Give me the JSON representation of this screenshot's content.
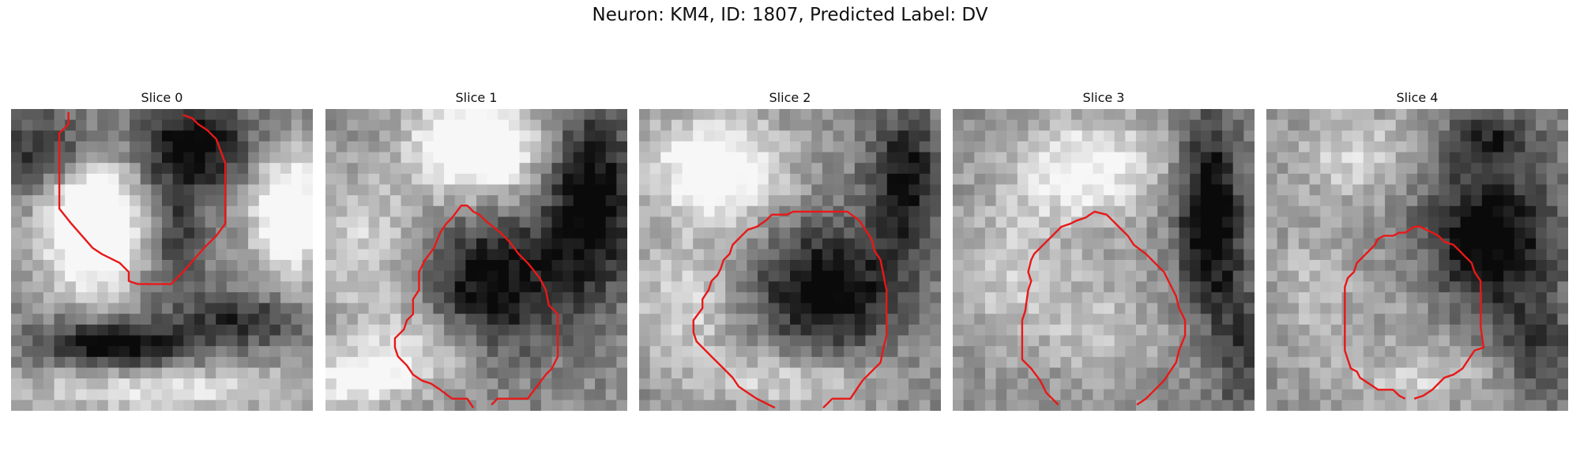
{
  "figure": {
    "title": "Neuron: KM4, ID: 1807, Predicted Label: DV"
  },
  "panels": [
    {
      "label": "Slice 0",
      "seed": 11,
      "blobs": [
        [
          0.27,
          0.37,
          0.16,
          0.22,
          0.85
        ],
        [
          0.92,
          0.35,
          0.12,
          0.2,
          0.7
        ],
        [
          0.6,
          0.12,
          0.2,
          0.14,
          -0.55
        ],
        [
          0.12,
          0.15,
          0.16,
          0.14,
          -0.45
        ],
        [
          0.35,
          0.78,
          0.25,
          0.08,
          -0.6
        ],
        [
          0.78,
          0.7,
          0.2,
          0.08,
          -0.4
        ],
        [
          0.55,
          0.42,
          0.1,
          0.2,
          -0.35
        ],
        [
          0.5,
          0.93,
          0.5,
          0.08,
          0.35
        ]
      ],
      "contour": [
        [
          0.19,
          0.01
        ],
        [
          0.19,
          0.05
        ],
        [
          0.16,
          0.08
        ],
        [
          0.16,
          0.33
        ],
        [
          0.2,
          0.38
        ],
        [
          0.27,
          0.46
        ],
        [
          0.3,
          0.48
        ],
        [
          0.36,
          0.51
        ],
        [
          0.39,
          0.54
        ],
        [
          0.39,
          0.57
        ],
        [
          0.42,
          0.58
        ],
        [
          0.53,
          0.58
        ],
        [
          0.57,
          0.54
        ],
        [
          0.64,
          0.46
        ],
        [
          0.68,
          0.42
        ],
        [
          0.71,
          0.38
        ],
        [
          0.71,
          0.18
        ],
        [
          0.68,
          0.1
        ],
        [
          0.65,
          0.07
        ],
        [
          0.62,
          0.05
        ],
        [
          0.6,
          0.03
        ],
        [
          0.57,
          0.02
        ]
      ]
    },
    {
      "label": "Slice 1",
      "seed": 23,
      "blobs": [
        [
          0.5,
          0.12,
          0.2,
          0.16,
          0.75
        ],
        [
          0.15,
          0.45,
          0.2,
          0.25,
          0.3
        ],
        [
          0.55,
          0.58,
          0.25,
          0.22,
          -0.55
        ],
        [
          0.88,
          0.3,
          0.14,
          0.3,
          -0.6
        ],
        [
          0.3,
          0.8,
          0.2,
          0.15,
          0.35
        ],
        [
          0.1,
          0.9,
          0.15,
          0.1,
          0.4
        ]
      ],
      "contour": [
        [
          0.49,
          0.99
        ],
        [
          0.47,
          0.96
        ],
        [
          0.42,
          0.96
        ],
        [
          0.38,
          0.93
        ],
        [
          0.35,
          0.91
        ],
        [
          0.32,
          0.9
        ],
        [
          0.29,
          0.88
        ],
        [
          0.27,
          0.85
        ],
        [
          0.24,
          0.82
        ],
        [
          0.23,
          0.79
        ],
        [
          0.23,
          0.76
        ],
        [
          0.26,
          0.73
        ],
        [
          0.27,
          0.7
        ],
        [
          0.29,
          0.68
        ],
        [
          0.29,
          0.63
        ],
        [
          0.31,
          0.6
        ],
        [
          0.31,
          0.54
        ],
        [
          0.33,
          0.5
        ],
        [
          0.36,
          0.46
        ],
        [
          0.38,
          0.41
        ],
        [
          0.4,
          0.38
        ],
        [
          0.42,
          0.36
        ],
        [
          0.45,
          0.32
        ],
        [
          0.47,
          0.32
        ],
        [
          0.49,
          0.34
        ],
        [
          0.51,
          0.35
        ],
        [
          0.53,
          0.37
        ],
        [
          0.58,
          0.41
        ],
        [
          0.61,
          0.44
        ],
        [
          0.64,
          0.48
        ],
        [
          0.67,
          0.51
        ],
        [
          0.71,
          0.56
        ],
        [
          0.73,
          0.6
        ],
        [
          0.74,
          0.65
        ],
        [
          0.77,
          0.68
        ],
        [
          0.77,
          0.82
        ],
        [
          0.75,
          0.86
        ],
        [
          0.73,
          0.88
        ],
        [
          0.7,
          0.92
        ],
        [
          0.67,
          0.96
        ],
        [
          0.57,
          0.96
        ],
        [
          0.55,
          0.98
        ]
      ]
    },
    {
      "label": "Slice 2",
      "seed": 37,
      "blobs": [
        [
          0.25,
          0.2,
          0.22,
          0.18,
          0.6
        ],
        [
          0.62,
          0.6,
          0.22,
          0.2,
          -0.6
        ],
        [
          0.88,
          0.25,
          0.12,
          0.25,
          -0.5
        ],
        [
          0.15,
          0.65,
          0.18,
          0.2,
          0.3
        ],
        [
          0.5,
          0.9,
          0.3,
          0.1,
          0.3
        ]
      ],
      "contour": [
        [
          0.45,
          0.99
        ],
        [
          0.43,
          0.98
        ],
        [
          0.39,
          0.96
        ],
        [
          0.36,
          0.94
        ],
        [
          0.33,
          0.92
        ],
        [
          0.31,
          0.89
        ],
        [
          0.28,
          0.86
        ],
        [
          0.25,
          0.83
        ],
        [
          0.22,
          0.8
        ],
        [
          0.19,
          0.77
        ],
        [
          0.18,
          0.74
        ],
        [
          0.18,
          0.7
        ],
        [
          0.21,
          0.66
        ],
        [
          0.21,
          0.63
        ],
        [
          0.23,
          0.6
        ],
        [
          0.24,
          0.57
        ],
        [
          0.26,
          0.55
        ],
        [
          0.27,
          0.53
        ],
        [
          0.28,
          0.5
        ],
        [
          0.3,
          0.48
        ],
        [
          0.31,
          0.45
        ],
        [
          0.34,
          0.42
        ],
        [
          0.36,
          0.4
        ],
        [
          0.39,
          0.39
        ],
        [
          0.42,
          0.37
        ],
        [
          0.44,
          0.35
        ],
        [
          0.49,
          0.35
        ],
        [
          0.51,
          0.34
        ],
        [
          0.69,
          0.34
        ],
        [
          0.73,
          0.37
        ],
        [
          0.75,
          0.4
        ],
        [
          0.77,
          0.43
        ],
        [
          0.78,
          0.47
        ],
        [
          0.8,
          0.5
        ],
        [
          0.81,
          0.55
        ],
        [
          0.82,
          0.6
        ],
        [
          0.82,
          0.75
        ],
        [
          0.81,
          0.79
        ],
        [
          0.8,
          0.84
        ],
        [
          0.77,
          0.87
        ],
        [
          0.74,
          0.9
        ],
        [
          0.72,
          0.93
        ],
        [
          0.7,
          0.96
        ],
        [
          0.64,
          0.96
        ],
        [
          0.61,
          0.99
        ]
      ]
    },
    {
      "label": "Slice 3",
      "seed": 53,
      "blobs": [
        [
          0.45,
          0.2,
          0.25,
          0.18,
          0.45
        ],
        [
          0.85,
          0.35,
          0.1,
          0.3,
          -0.7
        ],
        [
          0.5,
          0.72,
          0.2,
          0.2,
          0.2
        ],
        [
          0.2,
          0.55,
          0.18,
          0.25,
          0.25
        ],
        [
          0.95,
          0.8,
          0.08,
          0.25,
          -0.3
        ]
      ],
      "contour": [
        [
          0.35,
          0.98
        ],
        [
          0.31,
          0.94
        ],
        [
          0.29,
          0.9
        ],
        [
          0.26,
          0.86
        ],
        [
          0.23,
          0.83
        ],
        [
          0.23,
          0.7
        ],
        [
          0.24,
          0.67
        ],
        [
          0.25,
          0.6
        ],
        [
          0.26,
          0.57
        ],
        [
          0.25,
          0.54
        ],
        [
          0.26,
          0.5
        ],
        [
          0.27,
          0.48
        ],
        [
          0.29,
          0.46
        ],
        [
          0.32,
          0.43
        ],
        [
          0.34,
          0.41
        ],
        [
          0.36,
          0.39
        ],
        [
          0.39,
          0.38
        ],
        [
          0.41,
          0.37
        ],
        [
          0.44,
          0.36
        ],
        [
          0.47,
          0.34
        ],
        [
          0.51,
          0.35
        ],
        [
          0.53,
          0.37
        ],
        [
          0.55,
          0.39
        ],
        [
          0.58,
          0.42
        ],
        [
          0.6,
          0.45
        ],
        [
          0.64,
          0.48
        ],
        [
          0.67,
          0.51
        ],
        [
          0.7,
          0.54
        ],
        [
          0.72,
          0.58
        ],
        [
          0.74,
          0.62
        ],
        [
          0.75,
          0.66
        ],
        [
          0.77,
          0.7
        ],
        [
          0.77,
          0.75
        ],
        [
          0.75,
          0.8
        ],
        [
          0.74,
          0.84
        ],
        [
          0.72,
          0.87
        ],
        [
          0.7,
          0.9
        ],
        [
          0.67,
          0.93
        ],
        [
          0.64,
          0.96
        ],
        [
          0.61,
          0.98
        ]
      ]
    },
    {
      "label": "Slice 4",
      "seed": 71,
      "blobs": [
        [
          0.73,
          0.45,
          0.22,
          0.25,
          -0.65
        ],
        [
          0.55,
          0.62,
          0.2,
          0.22,
          0.15
        ],
        [
          0.75,
          0.1,
          0.15,
          0.1,
          -0.35
        ],
        [
          0.3,
          0.15,
          0.2,
          0.15,
          0.3
        ],
        [
          0.15,
          0.6,
          0.14,
          0.25,
          0.2
        ],
        [
          0.9,
          0.8,
          0.12,
          0.15,
          -0.3
        ],
        [
          0.5,
          0.9,
          0.25,
          0.1,
          0.25
        ]
      ],
      "contour": [
        [
          0.46,
          0.96
        ],
        [
          0.44,
          0.95
        ],
        [
          0.42,
          0.93
        ],
        [
          0.37,
          0.93
        ],
        [
          0.34,
          0.91
        ],
        [
          0.31,
          0.89
        ],
        [
          0.3,
          0.87
        ],
        [
          0.28,
          0.86
        ],
        [
          0.27,
          0.83
        ],
        [
          0.26,
          0.8
        ],
        [
          0.26,
          0.59
        ],
        [
          0.27,
          0.56
        ],
        [
          0.29,
          0.54
        ],
        [
          0.3,
          0.51
        ],
        [
          0.32,
          0.49
        ],
        [
          0.34,
          0.47
        ],
        [
          0.36,
          0.45
        ],
        [
          0.37,
          0.43
        ],
        [
          0.39,
          0.42
        ],
        [
          0.42,
          0.42
        ],
        [
          0.44,
          0.41
        ],
        [
          0.46,
          0.41
        ],
        [
          0.49,
          0.39
        ],
        [
          0.51,
          0.39
        ],
        [
          0.53,
          0.4
        ],
        [
          0.55,
          0.41
        ],
        [
          0.57,
          0.42
        ],
        [
          0.59,
          0.44
        ],
        [
          0.62,
          0.45
        ],
        [
          0.64,
          0.47
        ],
        [
          0.66,
          0.49
        ],
        [
          0.68,
          0.51
        ],
        [
          0.69,
          0.54
        ],
        [
          0.71,
          0.57
        ],
        [
          0.71,
          0.61
        ],
        [
          0.71,
          0.72
        ],
        [
          0.72,
          0.79
        ],
        [
          0.69,
          0.8
        ],
        [
          0.67,
          0.83
        ],
        [
          0.65,
          0.86
        ],
        [
          0.62,
          0.88
        ],
        [
          0.59,
          0.89
        ],
        [
          0.57,
          0.91
        ],
        [
          0.55,
          0.93
        ],
        [
          0.52,
          0.95
        ],
        [
          0.49,
          0.96
        ]
      ]
    }
  ],
  "colors": {
    "contour": "#e81818"
  },
  "grid": {
    "cells": 28
  }
}
